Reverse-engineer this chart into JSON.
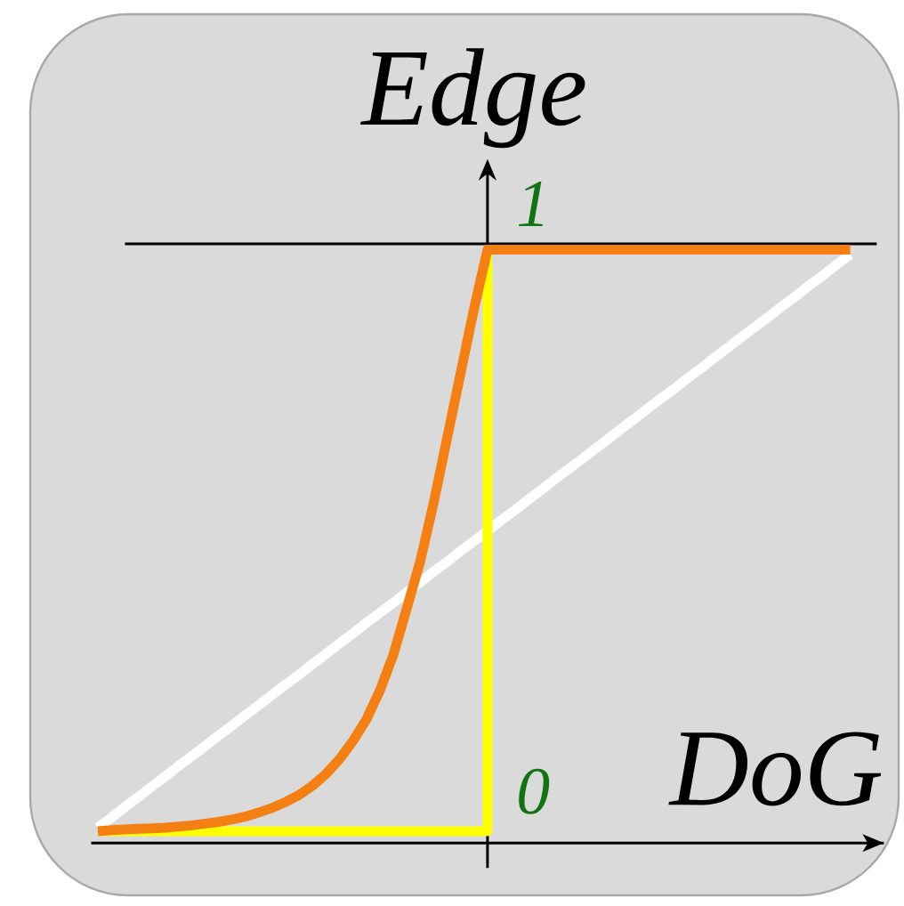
{
  "chart_data": {
    "type": "line",
    "xlabel": "DoG",
    "ylabel": "Edge",
    "categories": [
      null,
      null,
      null,
      null,
      null,
      null,
      null,
      null,
      null,
      null,
      null,
      null,
      null,
      null,
      null,
      null,
      null,
      null,
      null,
      null,
      null,
      null,
      null,
      null,
      null,
      null,
      null,
      null,
      null,
      null,
      null,
      null,
      null,
      null,
      null,
      null,
      null,
      null,
      null,
      null,
      null,
      null,
      null,
      null,
      null,
      null,
      null,
      null,
      null,
      null,
      null,
      null,
      null,
      null,
      null,
      null,
      null,
      null,
      null
    ],
    "ylim": [
      -0.02,
      1.12
    ],
    "yticks": [
      0,
      1
    ],
    "tick_labels": "y",
    "ref_lines": [
      {
        "axis": "y",
        "value": 1,
        "color": "#000000"
      }
    ],
    "series": [
      {
        "color": "#ffffff",
        "values": [
          0.006,
          0.023,
          0.041,
          0.058,
          0.076,
          0.093,
          0.111,
          0.128,
          0.145,
          0.163,
          0.18,
          0.198,
          0.215,
          0.233,
          0.25,
          0.267,
          0.285,
          0.302,
          0.32,
          0.337,
          0.355,
          0.372,
          0.389,
          0.407,
          0.424,
          0.442,
          0.459,
          0.477,
          0.494,
          0.511,
          0.529,
          0.546,
          0.564,
          0.581,
          0.599,
          0.616,
          0.633,
          0.651,
          0.668,
          0.686,
          0.703,
          0.721,
          0.738,
          0.755,
          0.773,
          0.79,
          0.808,
          0.825,
          0.843,
          0.86,
          0.877,
          0.895,
          0.912,
          0.93,
          0.947,
          0.965,
          0.982,
          null,
          null
        ]
      },
      {
        "type": "step",
        "color": "#ffff00",
        "values": [
          0,
          0,
          0,
          0,
          0,
          0,
          0,
          0,
          0,
          0,
          0,
          0,
          0,
          0,
          0,
          0,
          0,
          0,
          0,
          0,
          0,
          0,
          0,
          0,
          0,
          0,
          0,
          0,
          0,
          0.99,
          null,
          null,
          null,
          null,
          null,
          null,
          null,
          null,
          null,
          null,
          null,
          null,
          null,
          null,
          null,
          null,
          null,
          null,
          null,
          null,
          null,
          null,
          null,
          null,
          null,
          null,
          null,
          null,
          null
        ]
      },
      {
        "color": "#f47f12",
        "values": [
          0,
          0.002,
          0.003,
          0.004,
          0.005,
          0.006,
          0.008,
          0.01,
          0.013,
          0.016,
          0.02,
          0.025,
          0.032,
          0.04,
          0.05,
          0.062,
          0.078,
          0.098,
          0.123,
          0.154,
          0.191,
          0.24,
          0.301,
          0.38,
          0.46,
          0.56,
          0.67,
          0.78,
          0.89,
          0.99,
          0.99,
          0.99,
          0.99,
          0.99,
          0.99,
          0.99,
          0.99,
          0.99,
          0.99,
          0.99,
          0.99,
          0.99,
          0.99,
          0.99,
          0.99,
          0.99,
          0.99,
          0.99,
          0.99,
          0.99,
          0.99,
          0.99,
          0.99,
          0.99,
          0.99,
          0.99,
          0.99,
          null,
          null
        ]
      }
    ]
  }
}
